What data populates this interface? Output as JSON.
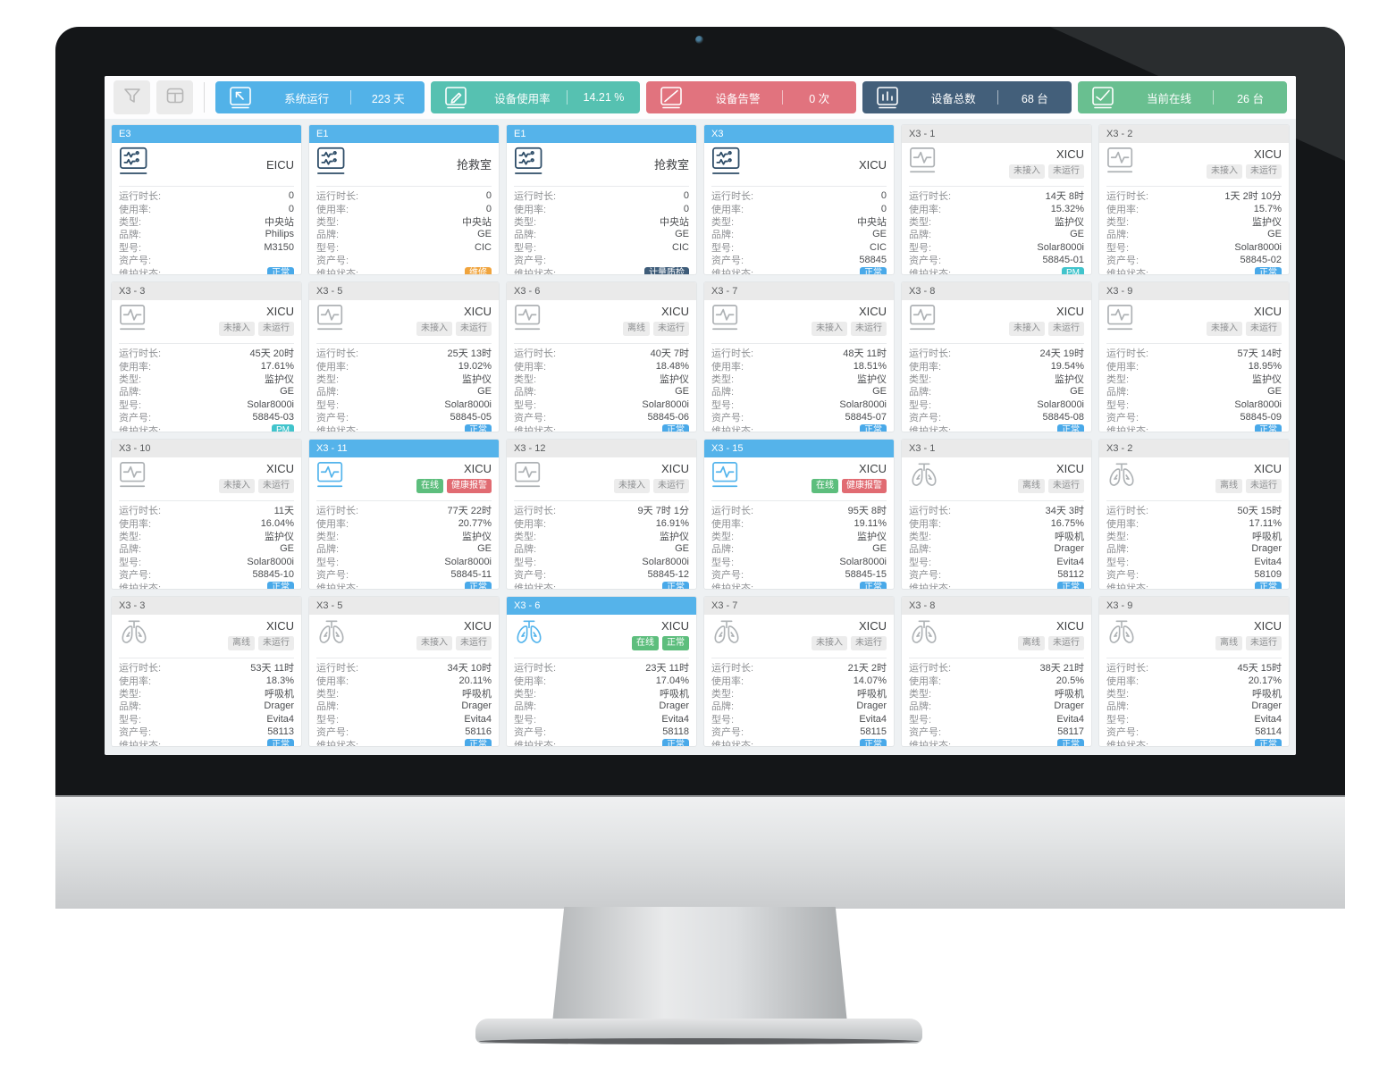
{
  "toolbar": {
    "buttons": [
      {
        "name": "filter-button",
        "icon": "filter-icon"
      },
      {
        "name": "layout-button",
        "icon": "layout-icon"
      }
    ],
    "stats": [
      {
        "label": "系统运行",
        "value": "223 天",
        "color": "#52b2e8",
        "icon": "system-run-icon"
      },
      {
        "label": "设备使用率",
        "value": "14.21 %",
        "color": "#56c1b1",
        "icon": "usage-rate-icon"
      },
      {
        "label": "设备告警",
        "value": "0 次",
        "color": "#e1737e",
        "icon": "device-alarm-icon"
      },
      {
        "label": "设备总数",
        "value": "68 台",
        "color": "#435f7a",
        "icon": "device-total-icon"
      },
      {
        "label": "当前在线",
        "value": "26 台",
        "color": "#69bf90",
        "icon": "online-now-icon"
      }
    ]
  },
  "field_labels": {
    "duration": "运行时长:",
    "usage": "使用率:",
    "type": "类型:",
    "brand": "品牌:",
    "model": "型号:",
    "asset": "资产号:",
    "maintenance": "维护状态:"
  },
  "status_colors": {
    "normal": "#49a9e9",
    "repair": "#f0a43d",
    "qc": "#3e5c79",
    "pm": "#41c4cc"
  },
  "cards": [
    {
      "header": "E3",
      "online": true,
      "icon": "central-station-icon",
      "iconColor": "dark",
      "title": "EICU",
      "chips": [],
      "duration": "0",
      "usage": "0",
      "type": "中央站",
      "brand": "Philips",
      "model": "M3150",
      "asset": "",
      "status": "正常",
      "statusVariant": "normal"
    },
    {
      "header": "E1",
      "online": true,
      "icon": "central-station-icon",
      "iconColor": "dark",
      "title": "抢救室",
      "chips": [],
      "duration": "0",
      "usage": "0",
      "type": "中央站",
      "brand": "GE",
      "model": "CIC",
      "asset": "",
      "status": "维修",
      "statusVariant": "repair"
    },
    {
      "header": "E1",
      "online": true,
      "icon": "central-station-icon",
      "iconColor": "dark",
      "title": "抢救室",
      "chips": [],
      "duration": "0",
      "usage": "0",
      "type": "中央站",
      "brand": "GE",
      "model": "CIC",
      "asset": "",
      "status": "计量质检",
      "statusVariant": "qc"
    },
    {
      "header": "X3",
      "online": true,
      "icon": "central-station-icon",
      "iconColor": "dark",
      "title": "XICU",
      "chips": [],
      "duration": "0",
      "usage": "0",
      "type": "中央站",
      "brand": "GE",
      "model": "CIC",
      "asset": "58845",
      "status": "正常",
      "statusVariant": "normal"
    },
    {
      "header": "X3 - 1",
      "online": false,
      "icon": "patient-monitor-icon",
      "iconColor": "gray",
      "title": "XICU",
      "chips": [
        {
          "text": "未接入",
          "variant": "gray"
        },
        {
          "text": "未运行",
          "variant": "gray"
        }
      ],
      "duration": "14天 8时",
      "usage": "15.32%",
      "type": "监护仪",
      "brand": "GE",
      "model": "Solar8000i",
      "asset": "58845-01",
      "status": "PM",
      "statusVariant": "pm"
    },
    {
      "header": "X3 - 2",
      "online": false,
      "icon": "patient-monitor-icon",
      "iconColor": "gray",
      "title": "XICU",
      "chips": [
        {
          "text": "未接入",
          "variant": "gray"
        },
        {
          "text": "未运行",
          "variant": "gray"
        }
      ],
      "duration": "1天 2时 10分",
      "usage": "15.7%",
      "type": "监护仪",
      "brand": "GE",
      "model": "Solar8000i",
      "asset": "58845-02",
      "status": "正常",
      "statusVariant": "normal"
    },
    {
      "header": "X3 - 3",
      "online": false,
      "icon": "patient-monitor-icon",
      "iconColor": "gray",
      "title": "XICU",
      "chips": [
        {
          "text": "未接入",
          "variant": "gray"
        },
        {
          "text": "未运行",
          "variant": "gray"
        }
      ],
      "duration": "45天 20时",
      "usage": "17.61%",
      "type": "监护仪",
      "brand": "GE",
      "model": "Solar8000i",
      "asset": "58845-03",
      "status": "PM",
      "statusVariant": "pm"
    },
    {
      "header": "X3 - 5",
      "online": false,
      "icon": "patient-monitor-icon",
      "iconColor": "gray",
      "title": "XICU",
      "chips": [
        {
          "text": "未接入",
          "variant": "gray"
        },
        {
          "text": "未运行",
          "variant": "gray"
        }
      ],
      "duration": "25天 13时",
      "usage": "19.02%",
      "type": "监护仪",
      "brand": "GE",
      "model": "Solar8000i",
      "asset": "58845-05",
      "status": "正常",
      "statusVariant": "normal"
    },
    {
      "header": "X3 - 6",
      "online": false,
      "icon": "patient-monitor-icon",
      "iconColor": "gray",
      "title": "XICU",
      "chips": [
        {
          "text": "离线",
          "variant": "gray"
        },
        {
          "text": "未运行",
          "variant": "gray"
        }
      ],
      "duration": "40天 7时",
      "usage": "18.48%",
      "type": "监护仪",
      "brand": "GE",
      "model": "Solar8000i",
      "asset": "58845-06",
      "status": "正常",
      "statusVariant": "normal"
    },
    {
      "header": "X3 - 7",
      "online": false,
      "icon": "patient-monitor-icon",
      "iconColor": "gray",
      "title": "XICU",
      "chips": [
        {
          "text": "未接入",
          "variant": "gray"
        },
        {
          "text": "未运行",
          "variant": "gray"
        }
      ],
      "duration": "48天 11时",
      "usage": "18.51%",
      "type": "监护仪",
      "brand": "GE",
      "model": "Solar8000i",
      "asset": "58845-07",
      "status": "正常",
      "statusVariant": "normal"
    },
    {
      "header": "X3 - 8",
      "online": false,
      "icon": "patient-monitor-icon",
      "iconColor": "gray",
      "title": "XICU",
      "chips": [
        {
          "text": "未接入",
          "variant": "gray"
        },
        {
          "text": "未运行",
          "variant": "gray"
        }
      ],
      "duration": "24天 19时",
      "usage": "19.54%",
      "type": "监护仪",
      "brand": "GE",
      "model": "Solar8000i",
      "asset": "58845-08",
      "status": "正常",
      "statusVariant": "normal"
    },
    {
      "header": "X3 - 9",
      "online": false,
      "icon": "patient-monitor-icon",
      "iconColor": "gray",
      "title": "XICU",
      "chips": [
        {
          "text": "未接入",
          "variant": "gray"
        },
        {
          "text": "未运行",
          "variant": "gray"
        }
      ],
      "duration": "57天 14时",
      "usage": "18.95%",
      "type": "监护仪",
      "brand": "GE",
      "model": "Solar8000i",
      "asset": "58845-09",
      "status": "正常",
      "statusVariant": "normal"
    },
    {
      "header": "X3 - 10",
      "online": false,
      "icon": "patient-monitor-icon",
      "iconColor": "gray",
      "title": "XICU",
      "chips": [
        {
          "text": "未接入",
          "variant": "gray"
        },
        {
          "text": "未运行",
          "variant": "gray"
        }
      ],
      "duration": "11天",
      "usage": "16.04%",
      "type": "监护仪",
      "brand": "GE",
      "model": "Solar8000i",
      "asset": "58845-10",
      "status": "正常",
      "statusVariant": "normal"
    },
    {
      "header": "X3 - 11",
      "online": true,
      "icon": "patient-monitor-icon",
      "iconColor": "blue",
      "title": "XICU",
      "chips": [
        {
          "text": "在线",
          "variant": "green"
        },
        {
          "text": "健康报警",
          "variant": "red"
        }
      ],
      "duration": "77天 22时",
      "usage": "20.77%",
      "type": "监护仪",
      "brand": "GE",
      "model": "Solar8000i",
      "asset": "58845-11",
      "status": "正常",
      "statusVariant": "normal"
    },
    {
      "header": "X3 - 12",
      "online": false,
      "icon": "patient-monitor-icon",
      "iconColor": "gray",
      "title": "XICU",
      "chips": [
        {
          "text": "未接入",
          "variant": "gray"
        },
        {
          "text": "未运行",
          "variant": "gray"
        }
      ],
      "duration": "9天 7时 1分",
      "usage": "16.91%",
      "type": "监护仪",
      "brand": "GE",
      "model": "Solar8000i",
      "asset": "58845-12",
      "status": "正常",
      "statusVariant": "normal"
    },
    {
      "header": "X3 - 15",
      "online": true,
      "icon": "patient-monitor-icon",
      "iconColor": "blue",
      "title": "XICU",
      "chips": [
        {
          "text": "在线",
          "variant": "green"
        },
        {
          "text": "健康报警",
          "variant": "red"
        }
      ],
      "duration": "95天 8时",
      "usage": "19.11%",
      "type": "监护仪",
      "brand": "GE",
      "model": "Solar8000i",
      "asset": "58845-15",
      "status": "正常",
      "statusVariant": "normal"
    },
    {
      "header": "X3 - 1",
      "online": false,
      "icon": "ventilator-lungs-icon",
      "iconColor": "gray",
      "title": "XICU",
      "chips": [
        {
          "text": "离线",
          "variant": "gray"
        },
        {
          "text": "未运行",
          "variant": "gray"
        }
      ],
      "duration": "34天 3时",
      "usage": "16.75%",
      "type": "呼吸机",
      "brand": "Drager",
      "model": "Evita4",
      "asset": "58112",
      "status": "正常",
      "statusVariant": "normal"
    },
    {
      "header": "X3 - 2",
      "online": false,
      "icon": "ventilator-lungs-icon",
      "iconColor": "gray",
      "title": "XICU",
      "chips": [
        {
          "text": "离线",
          "variant": "gray"
        },
        {
          "text": "未运行",
          "variant": "gray"
        }
      ],
      "duration": "50天 15时",
      "usage": "17.11%",
      "type": "呼吸机",
      "brand": "Drager",
      "model": "Evita4",
      "asset": "58109",
      "status": "正常",
      "statusVariant": "normal"
    },
    {
      "header": "X3 - 3",
      "online": false,
      "icon": "ventilator-lungs-icon",
      "iconColor": "gray",
      "title": "XICU",
      "chips": [
        {
          "text": "离线",
          "variant": "gray"
        },
        {
          "text": "未运行",
          "variant": "gray"
        }
      ],
      "duration": "53天 11时",
      "usage": "18.3%",
      "type": "呼吸机",
      "brand": "Drager",
      "model": "Evita4",
      "asset": "58113",
      "status": "正常",
      "statusVariant": "normal"
    },
    {
      "header": "X3 - 5",
      "online": false,
      "icon": "ventilator-lungs-icon",
      "iconColor": "gray",
      "title": "XICU",
      "chips": [
        {
          "text": "未接入",
          "variant": "gray"
        },
        {
          "text": "未运行",
          "variant": "gray"
        }
      ],
      "duration": "34天 10时",
      "usage": "20.11%",
      "type": "呼吸机",
      "brand": "Drager",
      "model": "Evita4",
      "asset": "58116",
      "status": "正常",
      "statusVariant": "normal"
    },
    {
      "header": "X3 - 6",
      "online": true,
      "icon": "ventilator-lungs-icon",
      "iconColor": "blue",
      "title": "XICU",
      "chips": [
        {
          "text": "在线",
          "variant": "green"
        },
        {
          "text": "正常",
          "variant": "green"
        }
      ],
      "duration": "23天 11时",
      "usage": "17.04%",
      "type": "呼吸机",
      "brand": "Drager",
      "model": "Evita4",
      "asset": "58118",
      "status": "正常",
      "statusVariant": "normal"
    },
    {
      "header": "X3 - 7",
      "online": false,
      "icon": "ventilator-lungs-icon",
      "iconColor": "gray",
      "title": "XICU",
      "chips": [
        {
          "text": "未接入",
          "variant": "gray"
        },
        {
          "text": "未运行",
          "variant": "gray"
        }
      ],
      "duration": "21天 2时",
      "usage": "14.07%",
      "type": "呼吸机",
      "brand": "Drager",
      "model": "Evita4",
      "asset": "58115",
      "status": "正常",
      "statusVariant": "normal"
    },
    {
      "header": "X3 - 8",
      "online": false,
      "icon": "ventilator-lungs-icon",
      "iconColor": "gray",
      "title": "XICU",
      "chips": [
        {
          "text": "离线",
          "variant": "gray"
        },
        {
          "text": "未运行",
          "variant": "gray"
        }
      ],
      "duration": "38天 21时",
      "usage": "20.5%",
      "type": "呼吸机",
      "brand": "Drager",
      "model": "Evita4",
      "asset": "58117",
      "status": "正常",
      "statusVariant": "normal"
    },
    {
      "header": "X3 - 9",
      "online": false,
      "icon": "ventilator-lungs-icon",
      "iconColor": "gray",
      "title": "XICU",
      "chips": [
        {
          "text": "离线",
          "variant": "gray"
        },
        {
          "text": "未运行",
          "variant": "gray"
        }
      ],
      "duration": "45天 15时",
      "usage": "20.17%",
      "type": "呼吸机",
      "brand": "Drager",
      "model": "Evita4",
      "asset": "58114",
      "status": "正常",
      "statusVariant": "normal"
    }
  ]
}
